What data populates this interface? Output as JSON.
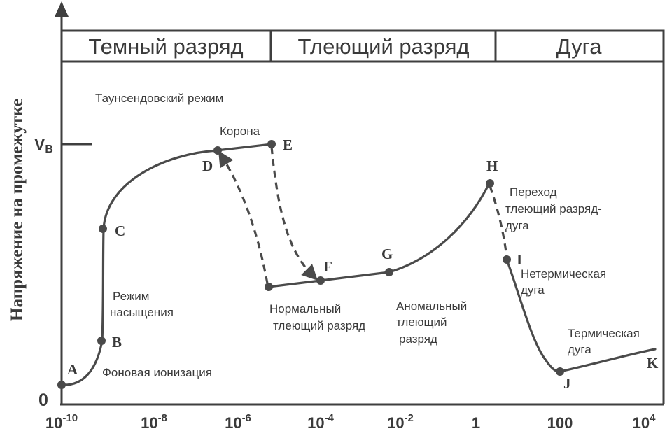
{
  "regions": [
    {
      "label": "Темный разряд"
    },
    {
      "label": "Тлеющий разряд"
    },
    {
      "label": "Дуга"
    }
  ],
  "y_axis": {
    "title": "Напряжение на промежутке",
    "vb_label": "V",
    "vb_sub": "B",
    "zero_label": "0"
  },
  "x_ticks": [
    {
      "base": "10",
      "exp": "-10"
    },
    {
      "base": "10",
      "exp": "-8"
    },
    {
      "base": "10",
      "exp": "-6"
    },
    {
      "base": "10",
      "exp": "-4"
    },
    {
      "base": "10",
      "exp": "-2"
    },
    {
      "base": "1",
      "exp": ""
    },
    {
      "base": "100",
      "exp": ""
    },
    {
      "base": "10",
      "exp": "4"
    }
  ],
  "points": {
    "A": "A",
    "B": "B",
    "C": "C",
    "D": "D",
    "E": "E",
    "F": "F",
    "G": "G",
    "H": "H",
    "I": "I",
    "J": "J",
    "K": "K"
  },
  "notes": {
    "townsend": "Таунсендовский режим",
    "corona": "Корона",
    "saturation_1": "Режим",
    "saturation_2": "насыщения",
    "background": "Фоновая ионизация",
    "normal_glow_1": "Нормальный",
    "normal_glow_2": "тлеющий разряд",
    "abnormal_glow_1": "Аномальный",
    "abnormal_glow_2": "тлеющий",
    "abnormal_glow_3": "разряд",
    "transition_1": "Переход",
    "transition_2": "тлеющий разряд-",
    "transition_3": "дуга",
    "nonthermal_1": "Нетермическая",
    "nonthermal_2": "дуга",
    "thermal_1": "Термическая",
    "thermal_2": "дуга"
  }
}
